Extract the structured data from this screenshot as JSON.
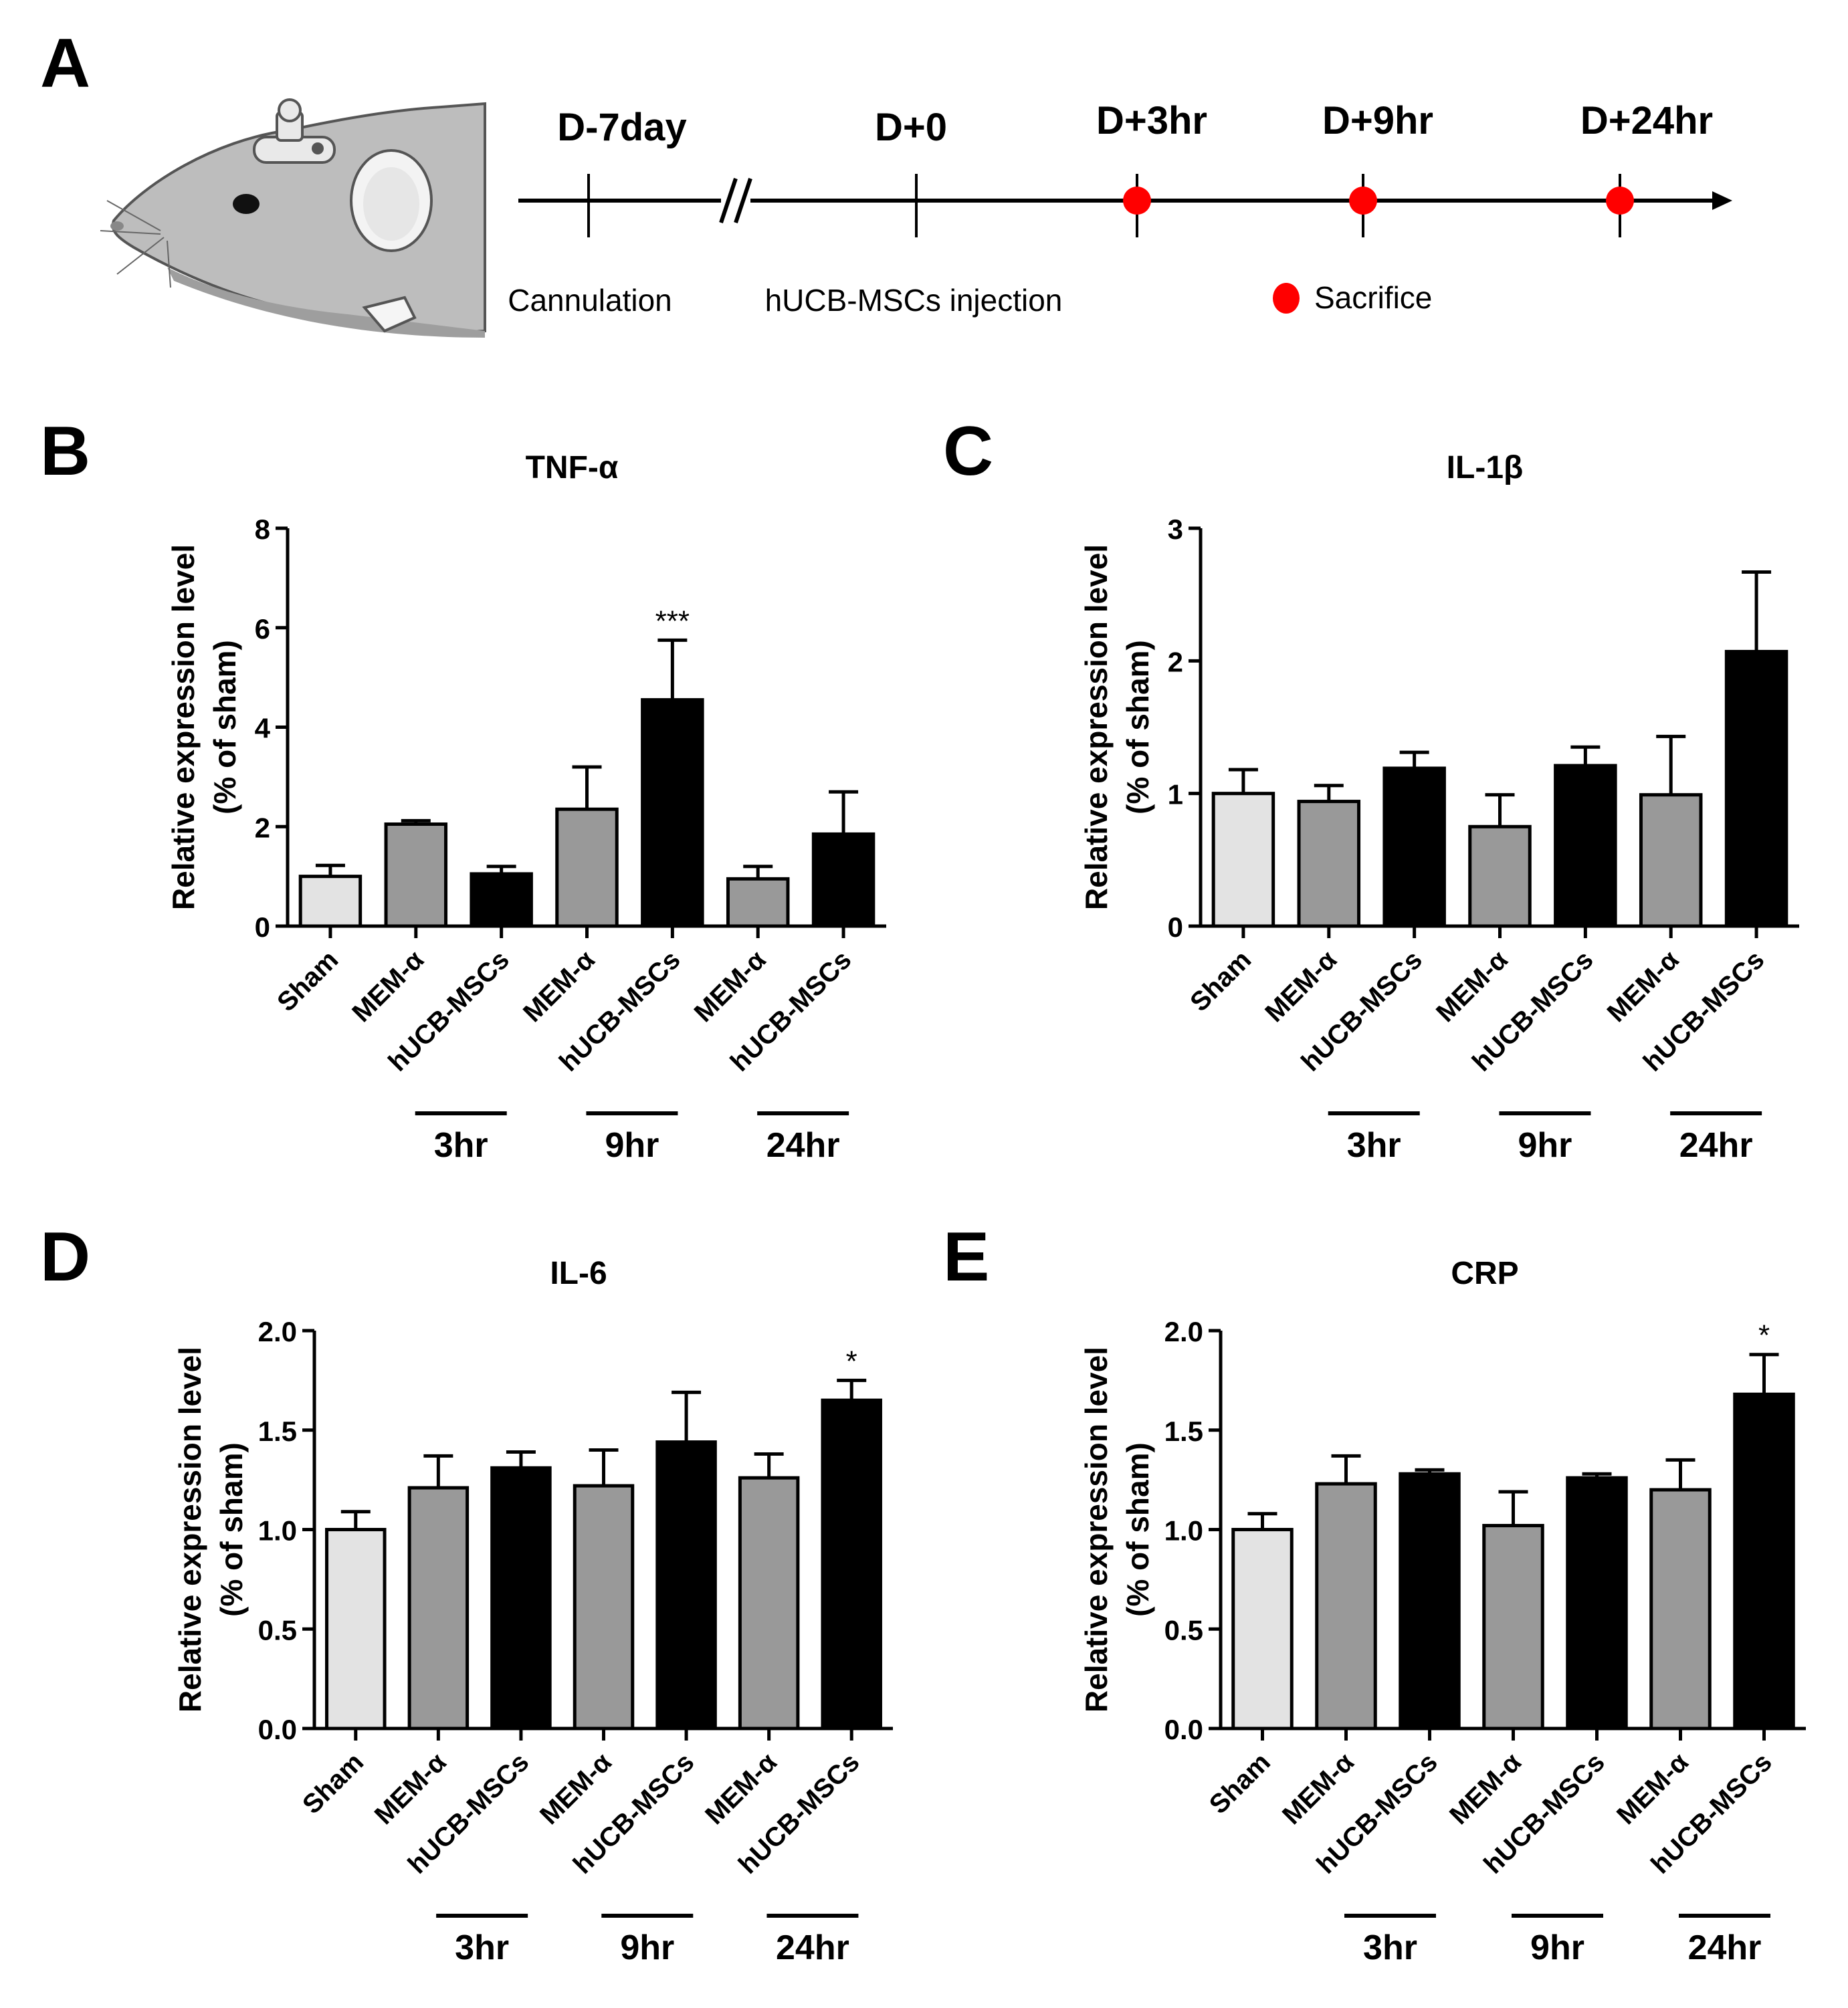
{
  "colors": {
    "sham": "#e3e3e3",
    "mem": "#999999",
    "msc": "#000000",
    "sacrifice": "#ff0000",
    "axis": "#000000"
  },
  "panel_a": {
    "label": "A",
    "timepoints": [
      "D-7day",
      "D+0",
      "D+3hr",
      "D+9hr",
      "D+24hr"
    ],
    "events": [
      "Cannulation",
      "hUCB-MSCs injection"
    ],
    "legend_text": "Sacrifice",
    "icons": [
      "rat-head-with-cannula-icon",
      "axis-break-icon",
      "red-dot-icon"
    ]
  },
  "chart_data": [
    {
      "panel": "B",
      "type": "bar",
      "title": "TNF-α",
      "ylabel_line1": "Relative expression level",
      "ylabel_line2": "(% of sham)",
      "ylim": [
        0,
        8
      ],
      "yticks": [
        0,
        2,
        4,
        6,
        8
      ],
      "ytick_labels": [
        "0",
        "2",
        "4",
        "6",
        "8"
      ],
      "categories": [
        "Sham",
        "MEM-α",
        "hUCB-MSCs",
        "MEM-α",
        "hUCB-MSCs",
        "MEM-α",
        "hUCB-MSCs"
      ],
      "values": [
        1.0,
        2.05,
        1.05,
        2.35,
        4.55,
        0.95,
        1.85
      ],
      "errors": [
        0.22,
        0.07,
        0.15,
        0.85,
        1.2,
        0.25,
        0.85
      ],
      "color_keys": [
        "sham",
        "mem",
        "msc",
        "mem",
        "msc",
        "mem",
        "msc"
      ],
      "annotations": [
        "",
        "",
        "",
        "",
        "***",
        "",
        ""
      ],
      "groups": [
        "3hr",
        "9hr",
        "24hr"
      ]
    },
    {
      "panel": "C",
      "type": "bar",
      "title": "IL-1β",
      "ylabel_line1": "Relative expression level",
      "ylabel_line2": "(% of sham)",
      "ylim": [
        0,
        3
      ],
      "yticks": [
        0,
        1,
        2,
        3
      ],
      "ytick_labels": [
        "0",
        "1",
        "2",
        "3"
      ],
      "categories": [
        "Sham",
        "MEM-α",
        "hUCB-MSCs",
        "MEM-α",
        "hUCB-MSCs",
        "MEM-α",
        "hUCB-MSCs"
      ],
      "values": [
        1.0,
        0.94,
        1.19,
        0.75,
        1.21,
        0.99,
        2.07
      ],
      "errors": [
        0.18,
        0.12,
        0.12,
        0.24,
        0.14,
        0.44,
        0.6
      ],
      "color_keys": [
        "sham",
        "mem",
        "msc",
        "mem",
        "msc",
        "mem",
        "msc"
      ],
      "annotations": [
        "",
        "",
        "",
        "",
        "",
        "",
        ""
      ],
      "groups": [
        "3hr",
        "9hr",
        "24hr"
      ]
    },
    {
      "panel": "D",
      "type": "bar",
      "title": "IL-6",
      "ylabel_line1": "Relative expression level",
      "ylabel_line2": "(% of sham)",
      "ylim": [
        0,
        2.0
      ],
      "yticks": [
        0,
        0.5,
        1.0,
        1.5,
        2.0
      ],
      "ytick_labels": [
        "0.0",
        "0.5",
        "1.0",
        "1.5",
        "2.0"
      ],
      "categories": [
        "Sham",
        "MEM-α",
        "hUCB-MSCs",
        "MEM-α",
        "hUCB-MSCs",
        "MEM-α",
        "hUCB-MSCs"
      ],
      "values": [
        1.0,
        1.21,
        1.31,
        1.22,
        1.44,
        1.26,
        1.65
      ],
      "errors": [
        0.09,
        0.16,
        0.08,
        0.18,
        0.25,
        0.12,
        0.1
      ],
      "color_keys": [
        "sham",
        "mem",
        "msc",
        "mem",
        "msc",
        "mem",
        "msc"
      ],
      "annotations": [
        "",
        "",
        "",
        "",
        "",
        "",
        "*"
      ],
      "groups": [
        "3hr",
        "9hr",
        "24hr"
      ]
    },
    {
      "panel": "E",
      "type": "bar",
      "title": "CRP",
      "ylabel_line1": "Relative expression level",
      "ylabel_line2": "(% of sham)",
      "ylim": [
        0,
        2.0
      ],
      "yticks": [
        0,
        0.5,
        1.0,
        1.5,
        2.0
      ],
      "ytick_labels": [
        "0.0",
        "0.5",
        "1.0",
        "1.5",
        "2.0"
      ],
      "categories": [
        "Sham",
        "MEM-α",
        "hUCB-MSCs",
        "MEM-α",
        "hUCB-MSCs",
        "MEM-α",
        "hUCB-MSCs"
      ],
      "values": [
        1.0,
        1.23,
        1.28,
        1.02,
        1.26,
        1.2,
        1.68
      ],
      "errors": [
        0.08,
        0.14,
        0.02,
        0.17,
        0.02,
        0.15,
        0.2
      ],
      "color_keys": [
        "sham",
        "mem",
        "msc",
        "mem",
        "msc",
        "mem",
        "msc"
      ],
      "annotations": [
        "",
        "",
        "",
        "",
        "",
        "",
        "*"
      ],
      "groups": [
        "3hr",
        "9hr",
        "24hr"
      ]
    }
  ]
}
